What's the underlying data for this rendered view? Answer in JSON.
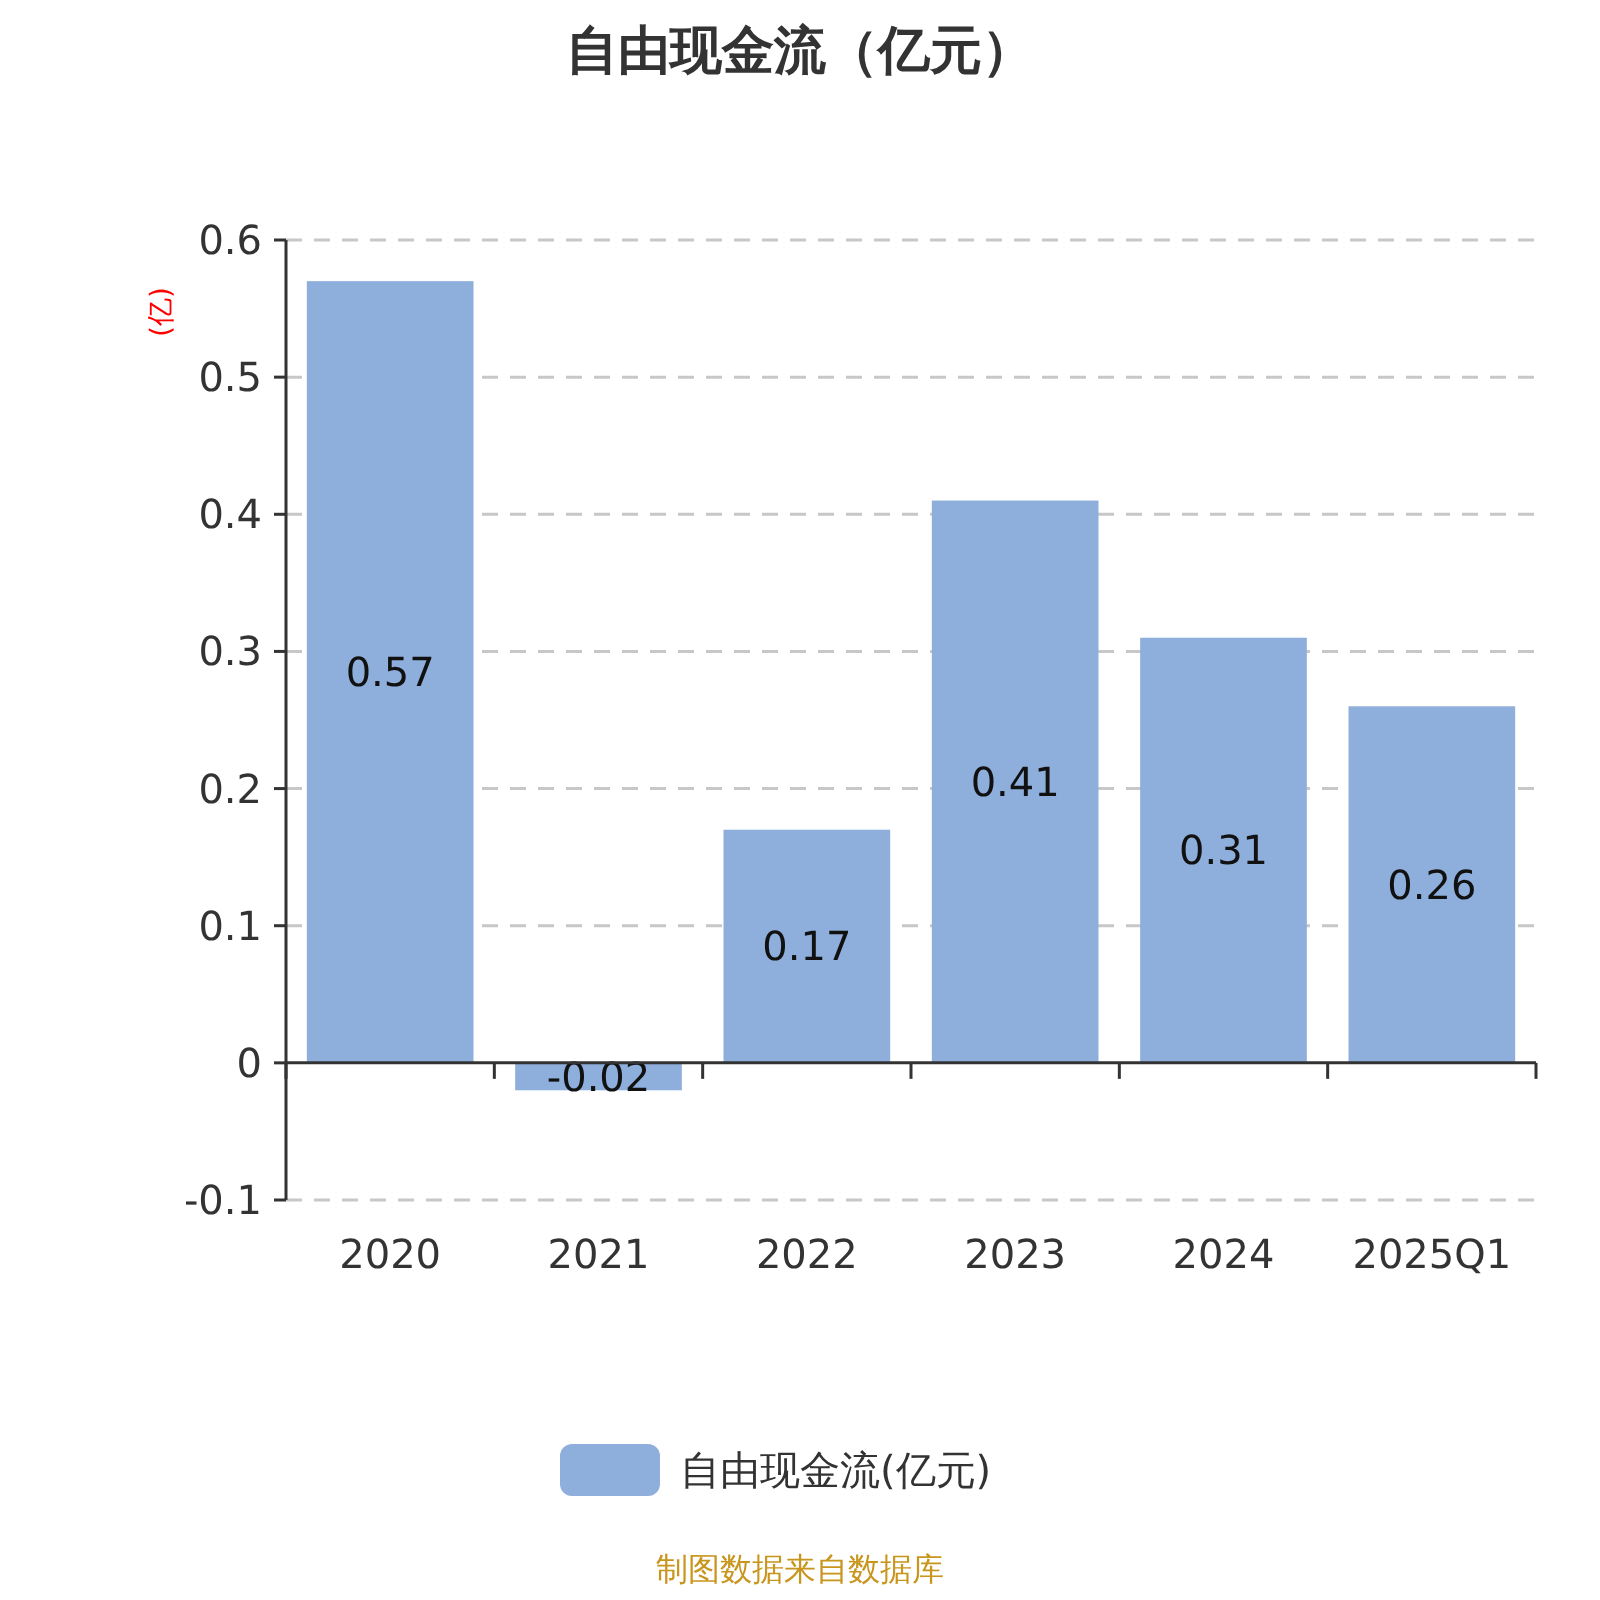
{
  "chart_data": {
    "type": "bar",
    "title": "自由现金流（亿元）",
    "ylabel": "(亿)",
    "categories": [
      "2020",
      "2021",
      "2022",
      "2023",
      "2024",
      "2025Q1"
    ],
    "series": [
      {
        "name": "自由现金流(亿元)",
        "color": "#8eaedb",
        "values": [
          0.57,
          -0.02,
          0.17,
          0.41,
          0.31,
          0.26
        ]
      }
    ],
    "ylim": [
      -0.1,
      0.6
    ],
    "yticks": [
      -0.1,
      0,
      0.1,
      0.2,
      0.3,
      0.4,
      0.5,
      0.6
    ],
    "grid": "y",
    "legend": "bottom",
    "data_labels": true,
    "annotations": [
      "制图数据来自数据库"
    ]
  }
}
